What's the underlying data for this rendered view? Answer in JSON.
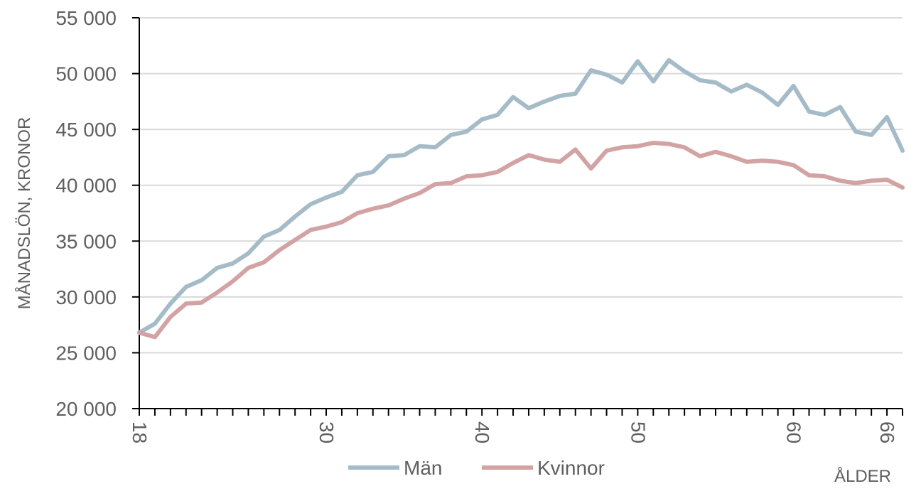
{
  "chart_data": {
    "type": "line",
    "ylabel": "MÅNADSLÖN, KRONOR",
    "xlabel": "ÅLDER",
    "ylim": [
      20000,
      55000
    ],
    "xlim": [
      18,
      67
    ],
    "y_ticks": [
      20000,
      25000,
      30000,
      35000,
      40000,
      45000,
      50000,
      55000
    ],
    "y_tick_labels": [
      "20 000",
      "25 000",
      "30 000",
      "35 000",
      "40 000",
      "45 000",
      "50 000",
      "55 000"
    ],
    "x_tick_labels": [
      "18",
      "30",
      "40",
      "50",
      "60",
      "66"
    ],
    "x_tick_label_values": [
      18,
      30,
      40,
      50,
      60,
      66
    ],
    "grid": "horizontal",
    "legend_position": "bottom-center",
    "x": [
      18,
      19,
      20,
      21,
      22,
      23,
      24,
      25,
      26,
      27,
      28,
      29,
      30,
      31,
      32,
      33,
      34,
      35,
      36,
      37,
      38,
      39,
      40,
      41,
      42,
      43,
      44,
      45,
      46,
      47,
      48,
      49,
      50,
      51,
      52,
      53,
      54,
      55,
      56,
      57,
      58,
      59,
      60,
      61,
      62,
      63,
      64,
      65,
      66,
      67
    ],
    "series": [
      {
        "name": "Män",
        "color": "#a5bcc8",
        "values": [
          26800,
          27600,
          29400,
          30900,
          31500,
          32600,
          33000,
          33900,
          35400,
          36000,
          37200,
          38300,
          38900,
          39400,
          40900,
          41200,
          42600,
          42700,
          43500,
          43400,
          44500,
          44800,
          45900,
          46300,
          47900,
          46900,
          47500,
          48000,
          48200,
          50300,
          49900,
          49200,
          51100,
          49300,
          51200,
          50200,
          49400,
          49200,
          48400,
          49000,
          48300,
          47200,
          48900,
          46600,
          46300,
          47000,
          44800,
          44500,
          46100,
          43100
        ]
      },
      {
        "name": "Kvinnor",
        "color": "#d3a3a4",
        "values": [
          26800,
          26400,
          28200,
          29400,
          29500,
          30400,
          31400,
          32600,
          33100,
          34200,
          35100,
          36000,
          36300,
          36700,
          37500,
          37900,
          38200,
          38800,
          39300,
          40100,
          40200,
          40800,
          40900,
          41200,
          42000,
          42700,
          42300,
          42100,
          43200,
          41500,
          43100,
          43400,
          43500,
          43800,
          43700,
          43400,
          42600,
          43000,
          42600,
          42100,
          42200,
          42100,
          41800,
          40900,
          40800,
          40400,
          40200,
          40400,
          40500,
          39800
        ]
      }
    ]
  }
}
